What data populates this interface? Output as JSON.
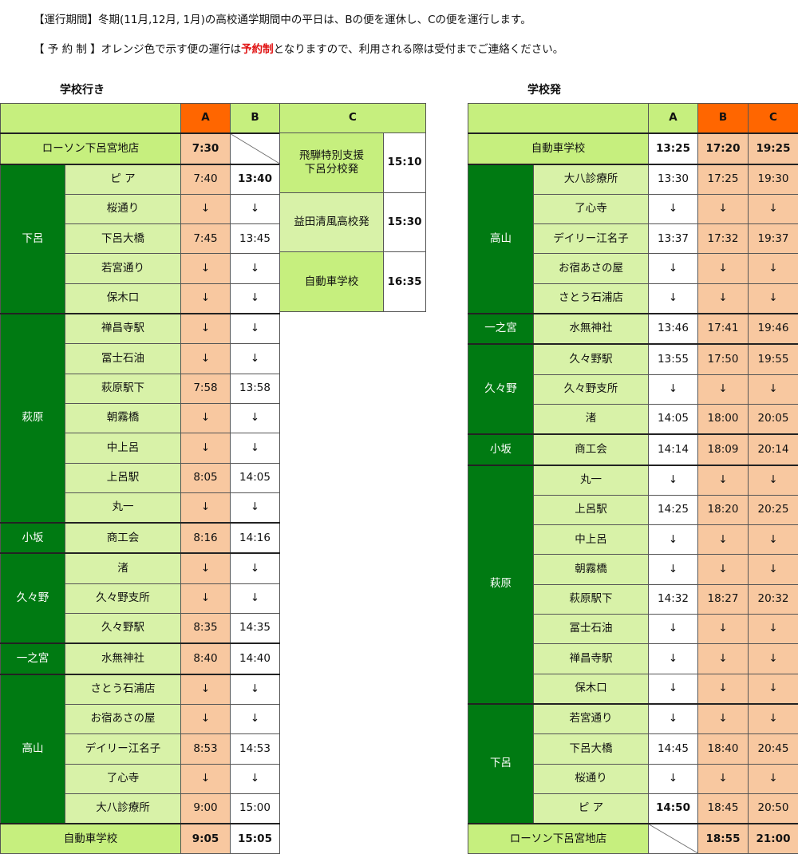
{
  "notes": {
    "period": "【運行期間】冬期(11月,12月, 1月)の高校通学期間中の平日は、Bの便を運休し、Cの便を運行します。",
    "reserve_pre": "【 予 約 制 】オレンジ色で示す便の運行は",
    "reserve_red": "予約制",
    "reserve_post": "となりますので、利用される際は受付までご連絡ください。"
  },
  "colors": {
    "dark_green": "#007a12",
    "header_green": "#c6ef7e",
    "pale_green": "#d8f2a8",
    "orange": "#ff6600",
    "peach": "#f8c8a0",
    "red": "#e01010"
  },
  "to_school": {
    "title": "学校行き",
    "headers": [
      "A",
      "B"
    ],
    "first": {
      "stop": "ローソン下呂宮地店",
      "times": [
        "7:30",
        ""
      ]
    },
    "groups": [
      {
        "area": "下呂",
        "stops": [
          [
            "ピ ア",
            "7:40",
            "13:40"
          ],
          [
            "桜通り",
            "↓",
            "↓"
          ],
          [
            "下呂大橋",
            "7:45",
            "13:45"
          ],
          [
            "若宮通り",
            "↓",
            "↓"
          ],
          [
            "保木口",
            "↓",
            "↓"
          ]
        ]
      },
      {
        "area": "萩原",
        "stops": [
          [
            "禅昌寺駅",
            "↓",
            "↓"
          ],
          [
            "冨士石油",
            "↓",
            "↓"
          ],
          [
            "萩原駅下",
            "7:58",
            "13:58"
          ],
          [
            "朝霧橋",
            "↓",
            "↓"
          ],
          [
            "中上呂",
            "↓",
            "↓"
          ],
          [
            "上呂駅",
            "8:05",
            "14:05"
          ],
          [
            "丸一",
            "↓",
            "↓"
          ]
        ]
      },
      {
        "area": "小坂",
        "stops": [
          [
            "商工会",
            "8:16",
            "14:16"
          ]
        ]
      },
      {
        "area": "久々野",
        "stops": [
          [
            "渚",
            "↓",
            "↓"
          ],
          [
            "久々野支所",
            "↓",
            "↓"
          ],
          [
            "久々野駅",
            "8:35",
            "14:35"
          ]
        ]
      },
      {
        "area": "一之宮",
        "stops": [
          [
            "水無神社",
            "8:40",
            "14:40"
          ]
        ]
      },
      {
        "area": "高山",
        "stops": [
          [
            "さとう石浦店",
            "↓",
            "↓"
          ],
          [
            "お宿あさの屋",
            "↓",
            "↓"
          ],
          [
            "デイリー江名子",
            "8:53",
            "14:53"
          ],
          [
            "了心寺",
            "↓",
            "↓"
          ],
          [
            "大八診療所",
            "9:00",
            "15:00"
          ]
        ]
      }
    ],
    "last": {
      "stop": "自動車学校",
      "times": [
        "9:05",
        "15:05"
      ]
    },
    "c_route": {
      "header": "C",
      "rows": [
        [
          "飛騨特別支援\n下呂分校発",
          "15:10"
        ],
        [
          "益田清風高校発",
          "15:30"
        ],
        [
          "自動車学校",
          "16:35"
        ]
      ]
    }
  },
  "from_school": {
    "title": "学校発",
    "headers": [
      "A",
      "B",
      "C"
    ],
    "first": {
      "stop": "自動車学校",
      "times": [
        "13:25",
        "17:20",
        "19:25"
      ]
    },
    "groups": [
      {
        "area": "高山",
        "stops": [
          [
            "大八診療所",
            "13:30",
            "17:25",
            "19:30"
          ],
          [
            "了心寺",
            "↓",
            "↓",
            "↓"
          ],
          [
            "デイリー江名子",
            "13:37",
            "17:32",
            "19:37"
          ],
          [
            "お宿あさの屋",
            "↓",
            "↓",
            "↓"
          ],
          [
            "さとう石浦店",
            "↓",
            "↓",
            "↓"
          ]
        ]
      },
      {
        "area": "一之宮",
        "stops": [
          [
            "水無神社",
            "13:46",
            "17:41",
            "19:46"
          ]
        ]
      },
      {
        "area": "久々野",
        "stops": [
          [
            "久々野駅",
            "13:55",
            "17:50",
            "19:55"
          ],
          [
            "久々野支所",
            "↓",
            "↓",
            "↓"
          ],
          [
            "渚",
            "14:05",
            "18:00",
            "20:05"
          ]
        ]
      },
      {
        "area": "小坂",
        "stops": [
          [
            "商工会",
            "14:14",
            "18:09",
            "20:14"
          ]
        ]
      },
      {
        "area": "萩原",
        "stops": [
          [
            "丸一",
            "↓",
            "↓",
            "↓"
          ],
          [
            "上呂駅",
            "14:25",
            "18:20",
            "20:25"
          ],
          [
            "中上呂",
            "↓",
            "↓",
            "↓"
          ],
          [
            "朝霧橋",
            "↓",
            "↓",
            "↓"
          ],
          [
            "萩原駅下",
            "14:32",
            "18:27",
            "20:32"
          ],
          [
            "冨士石油",
            "↓",
            "↓",
            "↓"
          ],
          [
            "禅昌寺駅",
            "↓",
            "↓",
            "↓"
          ],
          [
            "保木口",
            "↓",
            "↓",
            "↓"
          ]
        ]
      },
      {
        "area": "下呂",
        "stops": [
          [
            "若宮通り",
            "↓",
            "↓",
            "↓"
          ],
          [
            "下呂大橋",
            "14:45",
            "18:40",
            "20:45"
          ],
          [
            "桜通り",
            "↓",
            "↓",
            "↓"
          ],
          [
            "ピ ア",
            "14:50",
            "18:45",
            "20:50"
          ]
        ]
      }
    ],
    "last": {
      "stop": "ローソン下呂宮地店",
      "times": [
        "",
        "18:55",
        "21:00"
      ]
    }
  }
}
